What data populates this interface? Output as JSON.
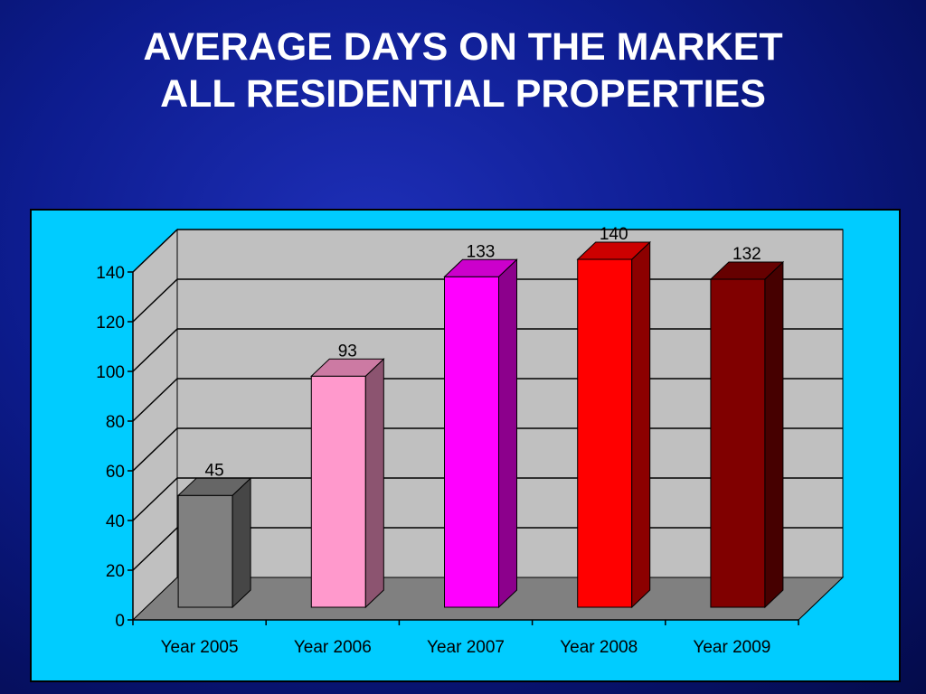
{
  "title": {
    "line1": "AVERAGE DAYS ON THE MARKET",
    "line2": "ALL RESIDENTIAL PROPERTIES"
  },
  "chart_data": {
    "type": "bar",
    "style": "3d-column",
    "categories": [
      "Year 2005",
      "Year 2006",
      "Year 2007",
      "Year 2008",
      "Year 2009"
    ],
    "values": [
      45,
      93,
      133,
      140,
      132
    ],
    "data_labels": [
      "45",
      "93",
      "133",
      "140",
      "132"
    ],
    "bar_colors": [
      "#808080",
      "#ff99cc",
      "#ff00ff",
      "#ff0000",
      "#800000"
    ],
    "ylim": [
      0,
      140
    ],
    "yticks": [
      0,
      20,
      40,
      60,
      80,
      100,
      120,
      140
    ],
    "grid": true,
    "legend": "none",
    "background_color": "#00ccff",
    "wall_color": "#c0c0c0",
    "floor_color": "#808080"
  }
}
